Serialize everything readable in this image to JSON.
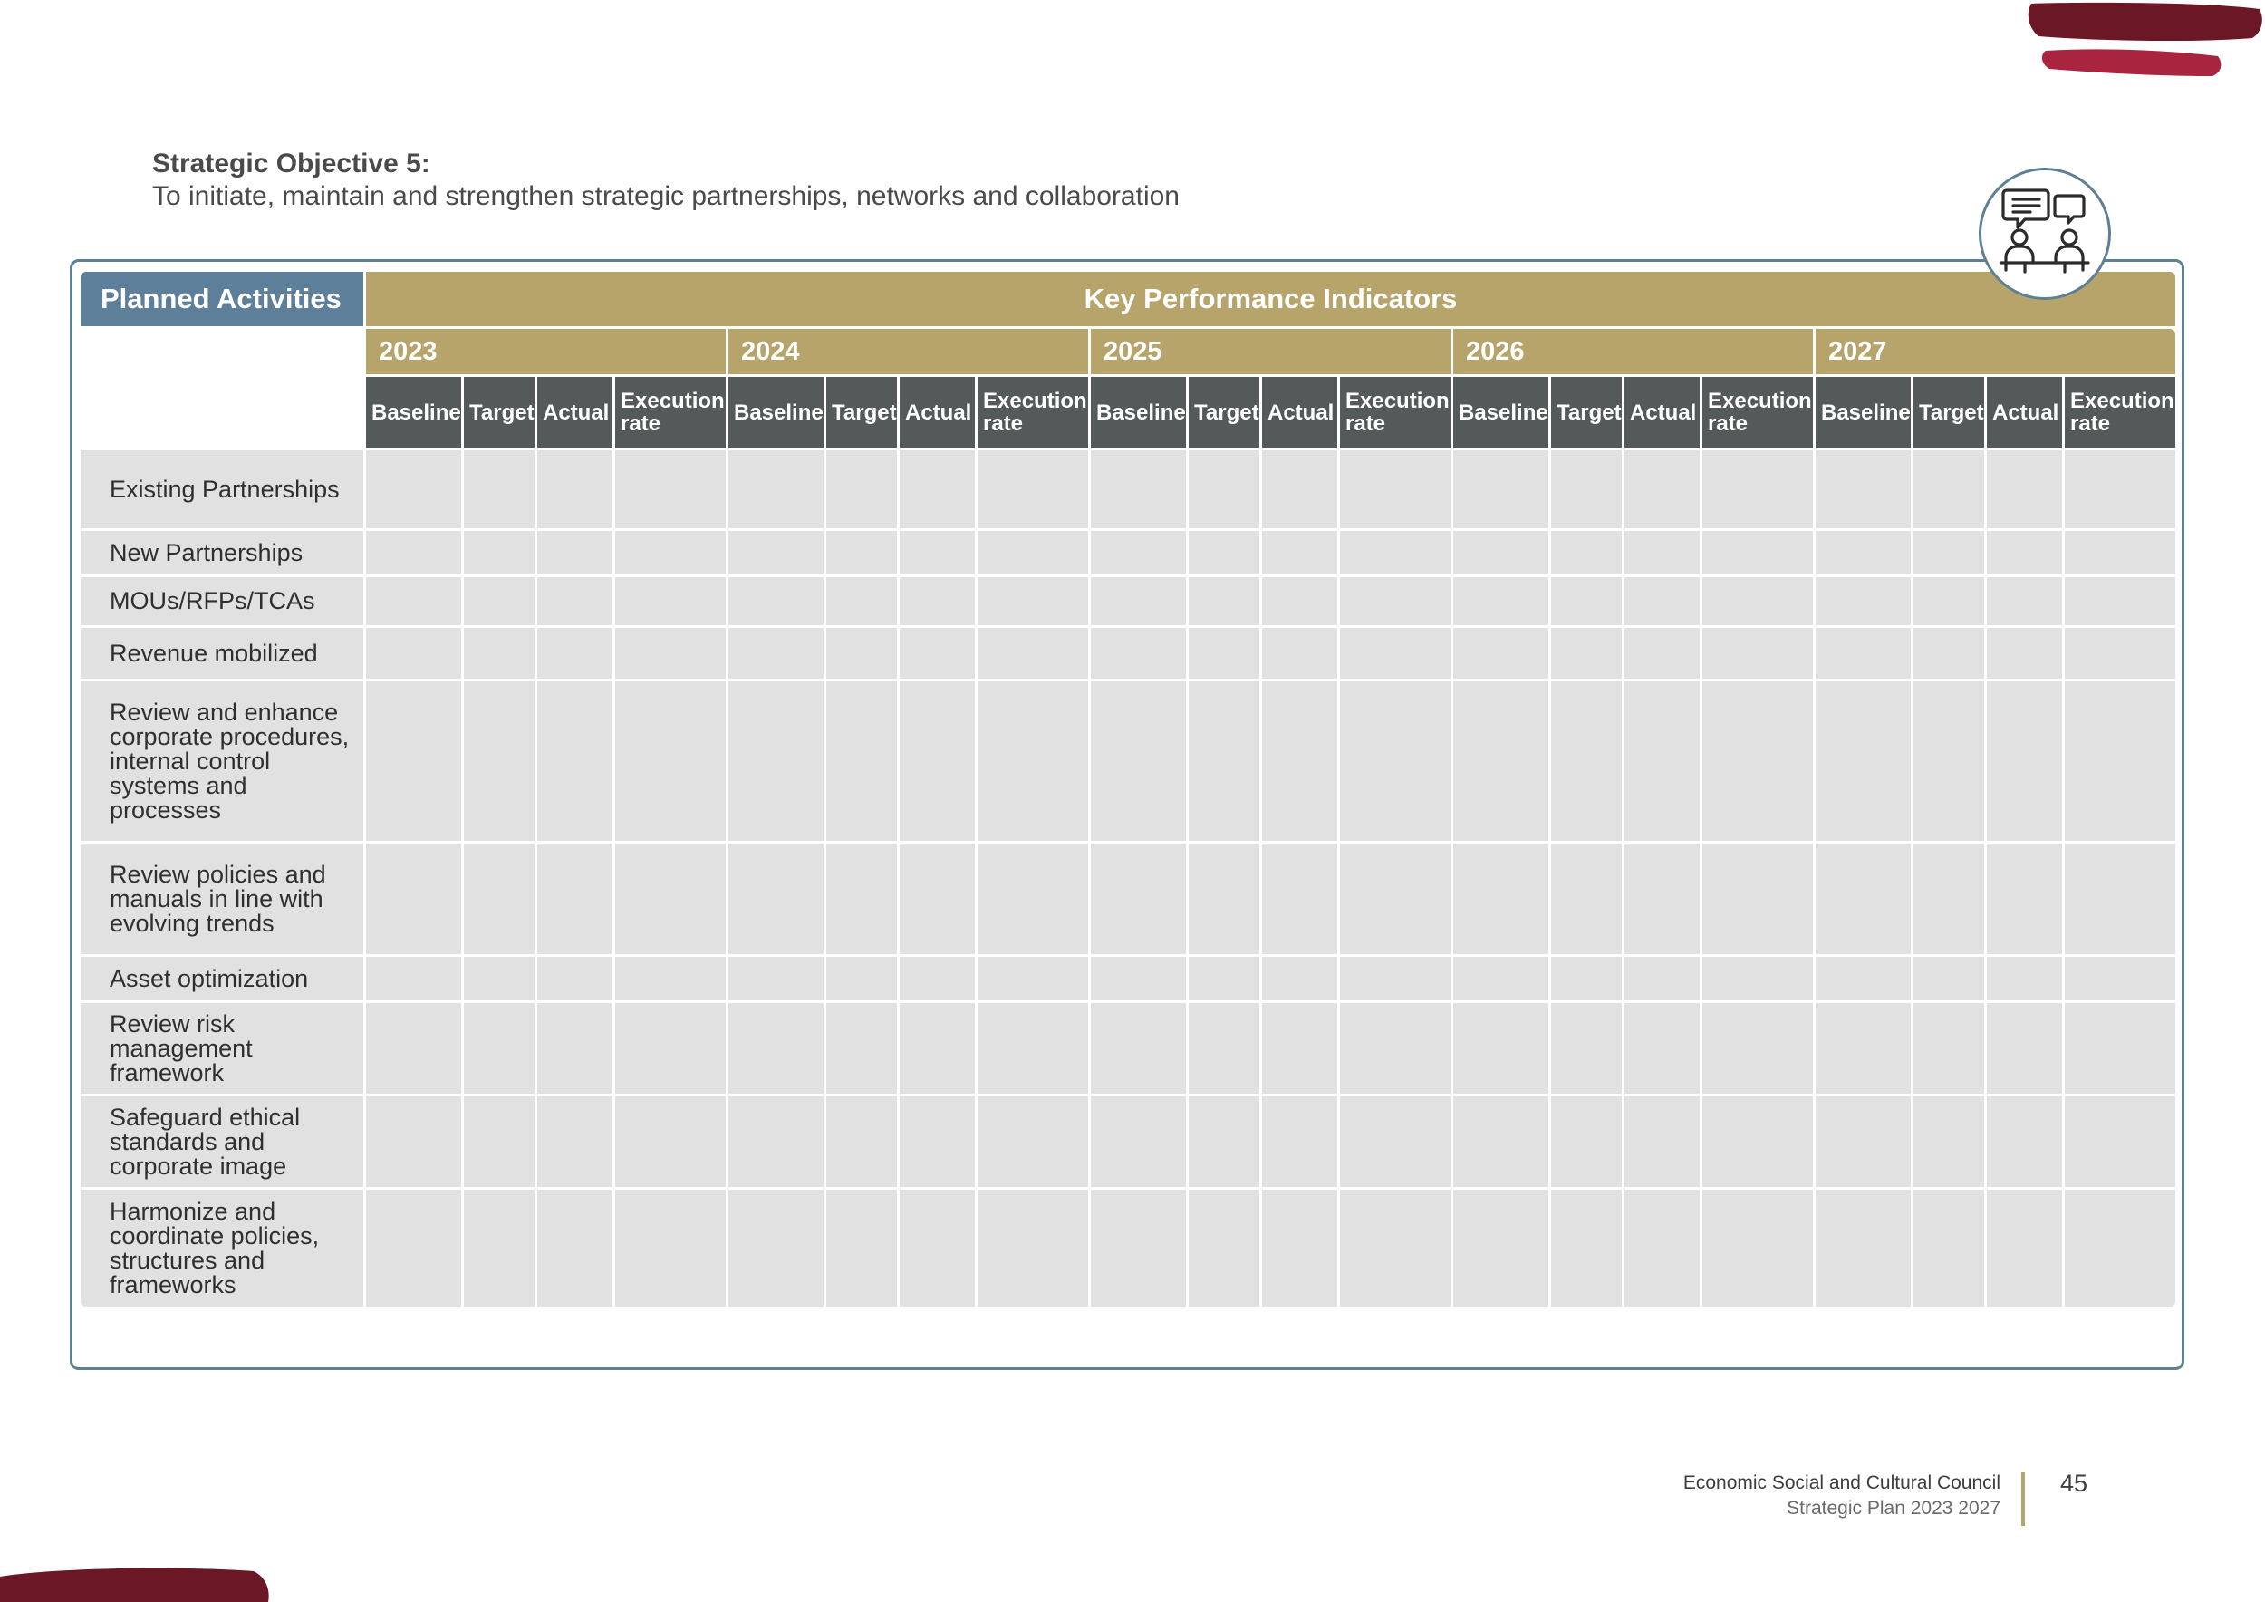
{
  "objective": {
    "heading": "Strategic Objective 5:",
    "text": "To initiate, maintain and strengthen strategic partnerships, networks and collaboration"
  },
  "icon": "partnership-dialogue-icon",
  "table": {
    "planned_header": "Planned Activities",
    "kpi_header": "Key Performance Indicators",
    "years": [
      "2023",
      "2024",
      "2025",
      "2026",
      "2027"
    ],
    "sub_headers": [
      "Baseline",
      "Target",
      "Actual",
      "Execution rate"
    ],
    "activities": [
      "Existing Partnerships",
      "New Partnerships",
      "MOUs/RFPs/TCAs",
      "Revenue mobilized",
      "Review and enhance corporate procedures, internal control systems and processes",
      "Review policies and manuals in line with evolving trends",
      "Asset optimization",
      "Review risk management framework",
      "Safeguard ethical standards and corporate image",
      "Harmonize and coordinate policies, structures and frameworks"
    ]
  },
  "footer": {
    "organization": "Economic Social and Cultural Council",
    "plan": "Strategic Plan 2023 2027",
    "page_number": "45"
  },
  "colors": {
    "brand_maroon": "#6b1726",
    "brand_crimson": "#a8243f",
    "header_blue": "#5e7f99",
    "gold": "#b7a46a",
    "dark_grey": "#545a5a",
    "cell_grey": "#e2e1e2"
  }
}
